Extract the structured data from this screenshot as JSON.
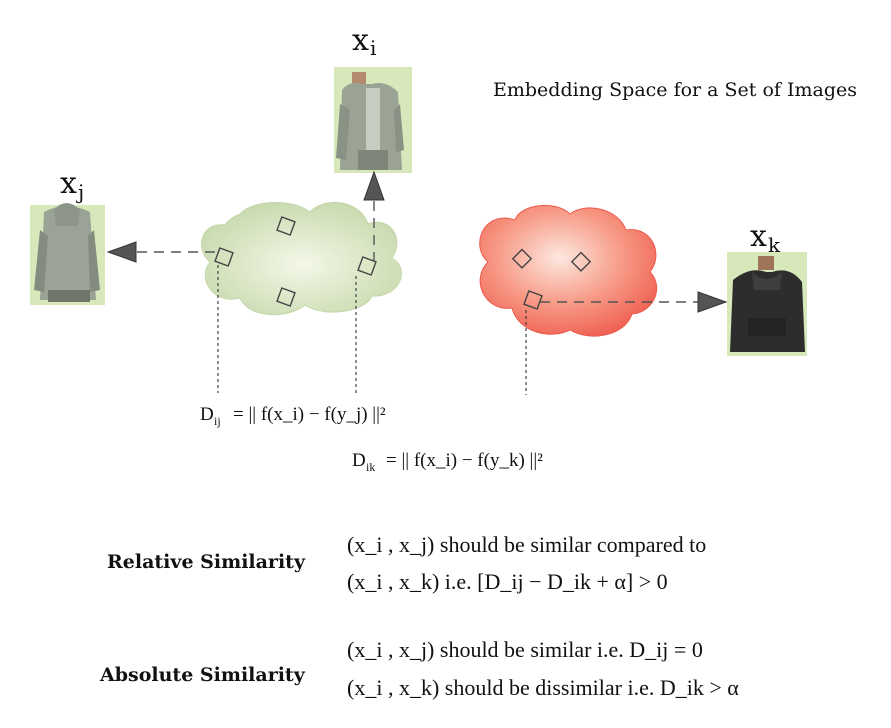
{
  "caption": "Embedding Space for a Set of Images",
  "nodes": {
    "xi": {
      "base": "x",
      "sub": "i"
    },
    "xj": {
      "base": "x",
      "sub": "j"
    },
    "xk": {
      "base": "x",
      "sub": "k"
    }
  },
  "equations": {
    "dij": {
      "lhs_base": "D",
      "lhs_sub": "ij",
      "rhs": "= || f(x_i) − f(y_j) ||²"
    },
    "dik": {
      "lhs_base": "D",
      "lhs_sub": "ik",
      "rhs": "= || f(x_i) − f(y_k) ||²"
    }
  },
  "relative_similarity": {
    "title": "Relative Similarity",
    "line1": "(x_i , x_j) should be similar compared to",
    "line2": "(x_i , x_k)  i.e. [D_ij − D_ik + α] > 0"
  },
  "absolute_similarity": {
    "title": "Absolute Similarity",
    "line1": "(x_i , x_j) should be similar i.e. D_ij = 0",
    "line2": "(x_i , x_k) should be dissimilar i.e. D_ik > α"
  },
  "colors": {
    "green_cloud_center": "#f3f7e6",
    "green_cloud_edge": "#c3d6a8",
    "red_cloud_center": "#fde6de",
    "red_cloud_edge": "#f06a5a",
    "image_bg": "#d5e8b8",
    "jacket_gray": "#9aa393",
    "hoodie_dark": "#2b2b2b",
    "skin": "#a97a5c",
    "arrow_head": "#555555"
  },
  "icons": [
    "hoodie-photo-i",
    "hoodie-photo-j",
    "hoodie-photo-k"
  ]
}
